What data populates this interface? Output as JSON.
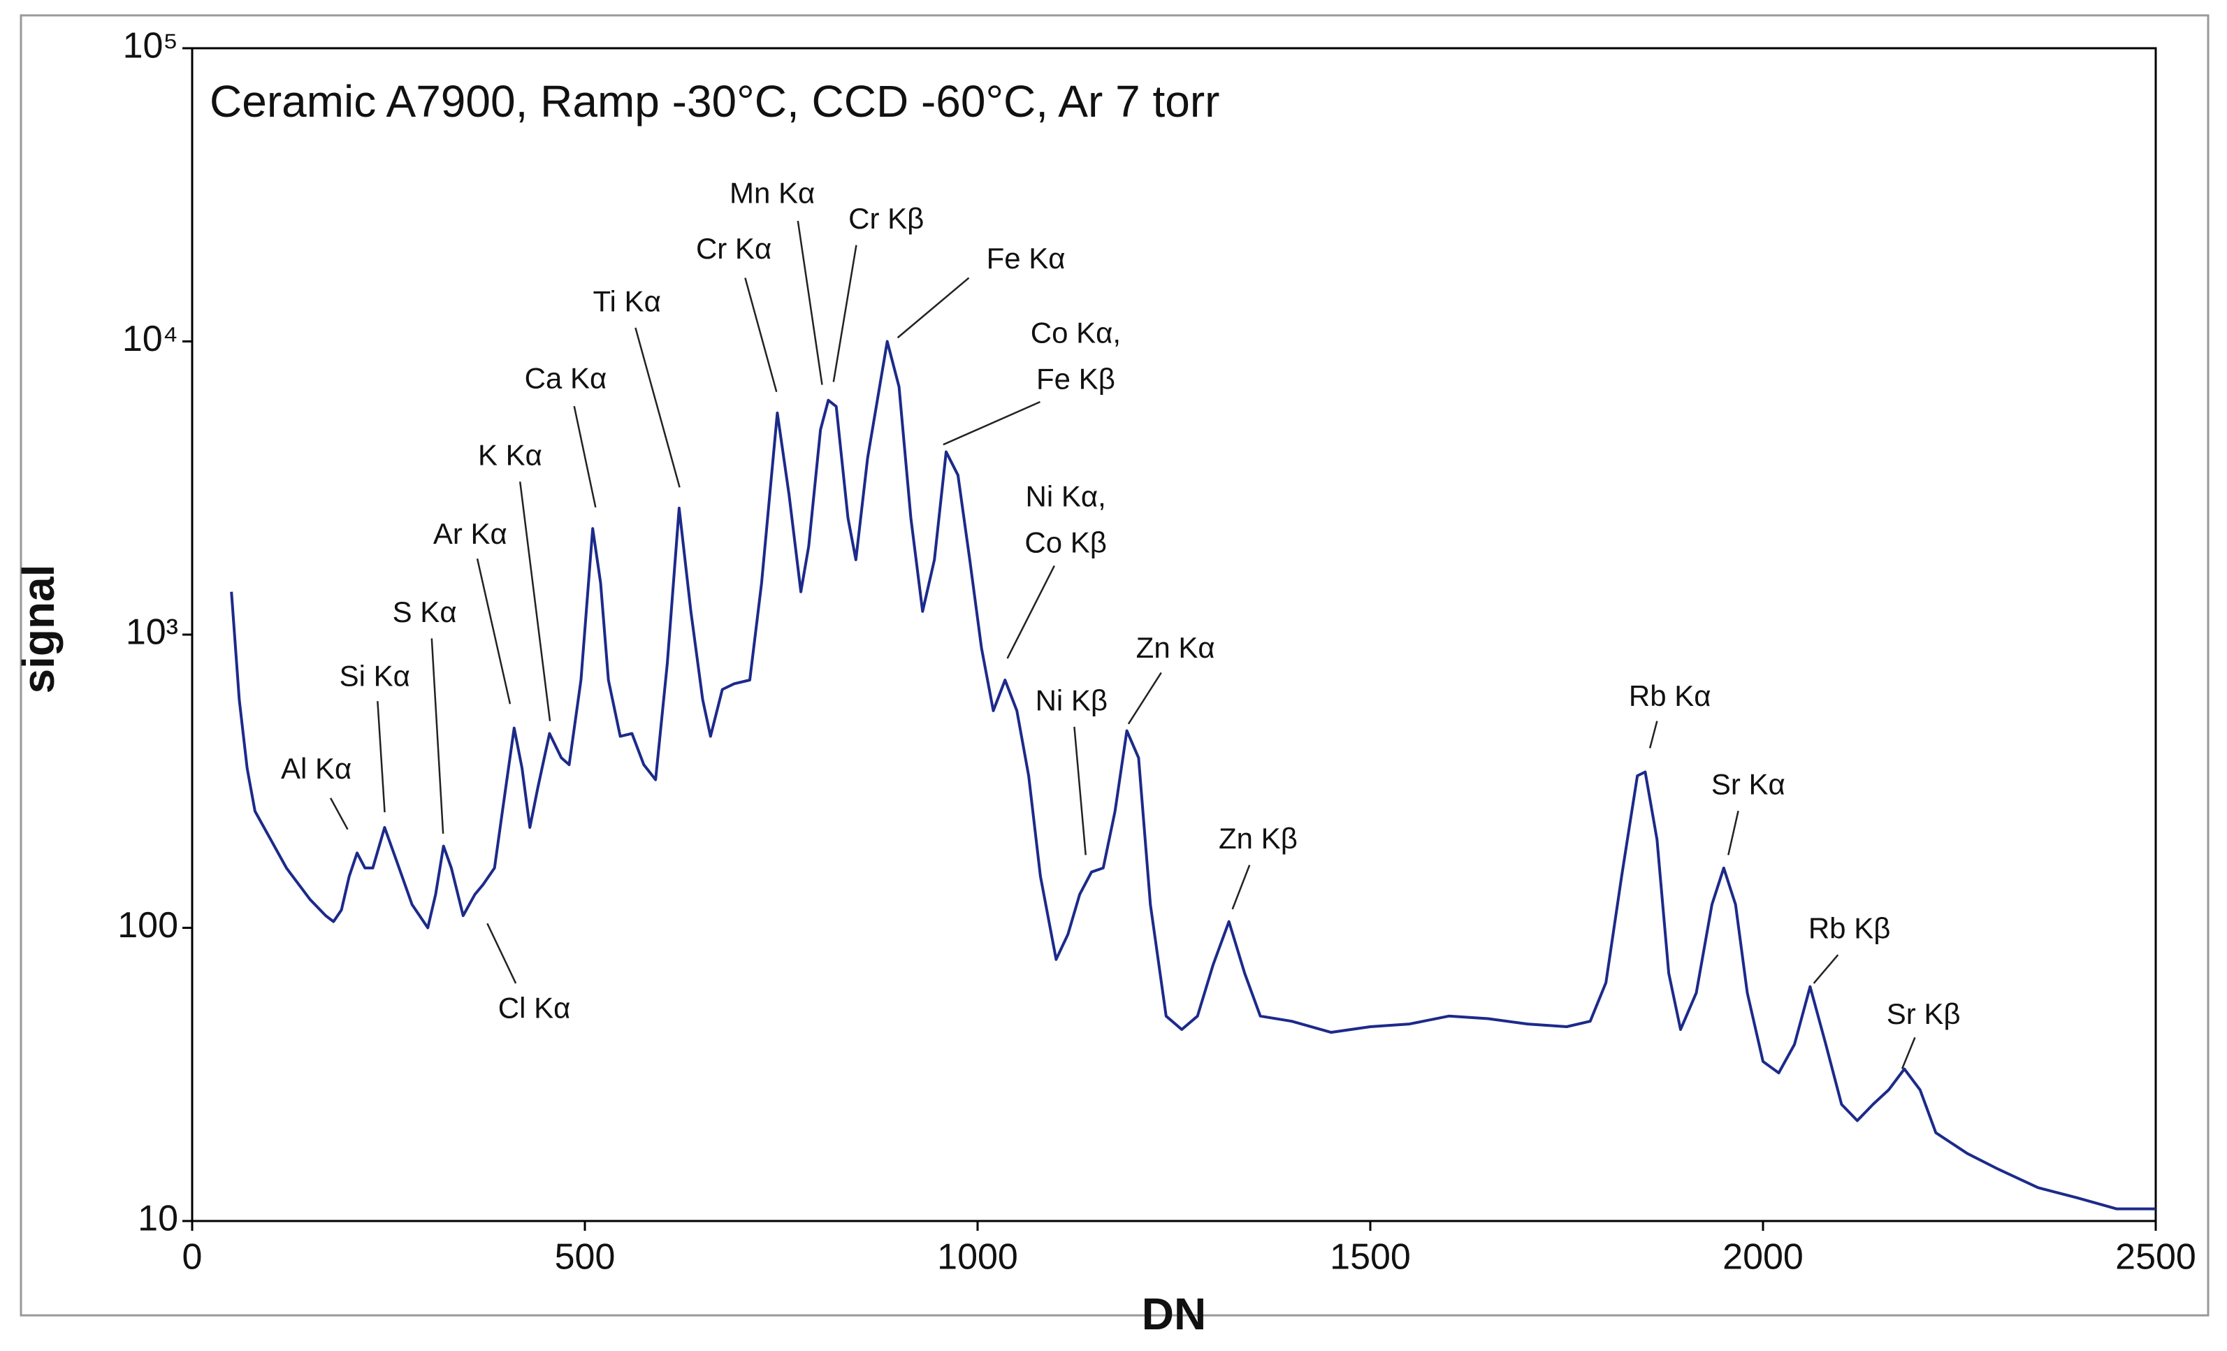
{
  "chart_data": {
    "type": "line",
    "title": "Ceramic A7900, Ramp -30°C, CCD -60°C, Ar 7 torr",
    "xlabel": "DN",
    "ylabel": "signal",
    "log_y": true,
    "xlim": [
      0,
      2500
    ],
    "ylim": [
      10,
      100000
    ],
    "xticks": [
      0,
      500,
      1000,
      1500,
      2000,
      2500
    ],
    "yticks": [
      10,
      100,
      {
        "value": 1000,
        "label": "10³"
      },
      {
        "value": 10000,
        "label": "10⁴"
      },
      {
        "value": 100000,
        "label": "10⁵"
      }
    ],
    "series": [
      {
        "color": "#1c2a8a",
        "x": [
          50,
          60,
          70,
          80,
          100,
          120,
          150,
          170,
          180,
          190,
          200,
          210,
          220,
          230,
          245,
          260,
          280,
          300,
          310,
          320,
          330,
          345,
          360,
          370,
          385,
          395,
          410,
          420,
          430,
          440,
          455,
          470,
          480,
          495,
          510,
          520,
          530,
          545,
          560,
          575,
          590,
          605,
          620,
          635,
          650,
          660,
          675,
          690,
          710,
          725,
          745,
          760,
          775,
          785,
          800,
          810,
          820,
          835,
          845,
          860,
          885,
          900,
          915,
          930,
          945,
          960,
          975,
          990,
          1005,
          1020,
          1035,
          1050,
          1065,
          1080,
          1100,
          1115,
          1130,
          1145,
          1160,
          1175,
          1190,
          1205,
          1220,
          1240,
          1260,
          1280,
          1300,
          1320,
          1340,
          1360,
          1400,
          1450,
          1500,
          1550,
          1600,
          1650,
          1700,
          1750,
          1780,
          1800,
          1820,
          1840,
          1850,
          1865,
          1880,
          1895,
          1915,
          1935,
          1950,
          1965,
          1980,
          2000,
          2020,
          2040,
          2060,
          2080,
          2100,
          2120,
          2140,
          2160,
          2180,
          2200,
          2220,
          2260,
          2300,
          2350,
          2400,
          2450,
          2500
        ],
        "values": [
          1400,
          600,
          350,
          250,
          200,
          160,
          125,
          110,
          105,
          115,
          150,
          180,
          160,
          160,
          220,
          170,
          120,
          100,
          130,
          190,
          160,
          110,
          130,
          140,
          160,
          250,
          480,
          350,
          220,
          300,
          460,
          380,
          360,
          700,
          2300,
          1500,
          700,
          450,
          460,
          360,
          320,
          800,
          2700,
          1200,
          600,
          450,
          650,
          680,
          700,
          1500,
          5700,
          3000,
          1400,
          2000,
          5000,
          6300,
          6000,
          2500,
          1800,
          4000,
          10000,
          7000,
          2500,
          1200,
          1800,
          4200,
          3500,
          1800,
          900,
          550,
          700,
          550,
          330,
          150,
          78,
          95,
          130,
          155,
          160,
          250,
          470,
          380,
          120,
          50,
          45,
          50,
          75,
          105,
          70,
          50,
          48,
          44,
          46,
          47,
          50,
          49,
          47,
          46,
          48,
          65,
          150,
          330,
          340,
          200,
          70,
          45,
          60,
          120,
          160,
          120,
          60,
          35,
          32,
          40,
          63,
          40,
          25,
          22,
          25,
          28,
          33,
          28,
          20,
          17,
          15,
          13,
          12,
          11,
          11
        ]
      }
    ],
    "annotations": [
      {
        "text": [
          "Al Kα"
        ]
      },
      {
        "text": [
          "Si Kα"
        ]
      },
      {
        "text": [
          "S Kα"
        ]
      },
      {
        "text": [
          "Ar Kα"
        ]
      },
      {
        "text": [
          "K Kα"
        ]
      },
      {
        "text": [
          "Ca Kα"
        ]
      },
      {
        "text": [
          "Ti Kα"
        ]
      },
      {
        "text": [
          "Cr Kα"
        ]
      },
      {
        "text": [
          "Mn Kα"
        ]
      },
      {
        "text": [
          "Cr Kβ"
        ]
      },
      {
        "text": [
          "Fe Kα"
        ]
      },
      {
        "text": [
          "Co Kα,",
          "Fe Kβ"
        ]
      },
      {
        "text": [
          "Ni Kα,",
          "Co Kβ"
        ]
      },
      {
        "text": [
          "Ni Kβ"
        ]
      },
      {
        "text": [
          "Zn Kα"
        ]
      },
      {
        "text": [
          "Zn Kβ"
        ]
      },
      {
        "text": [
          "Cl Kα"
        ]
      },
      {
        "text": [
          "Rb Kα"
        ]
      },
      {
        "text": [
          "Sr Kα"
        ]
      },
      {
        "text": [
          "Rb Kβ"
        ]
      },
      {
        "text": [
          "Sr Kβ"
        ]
      }
    ]
  }
}
